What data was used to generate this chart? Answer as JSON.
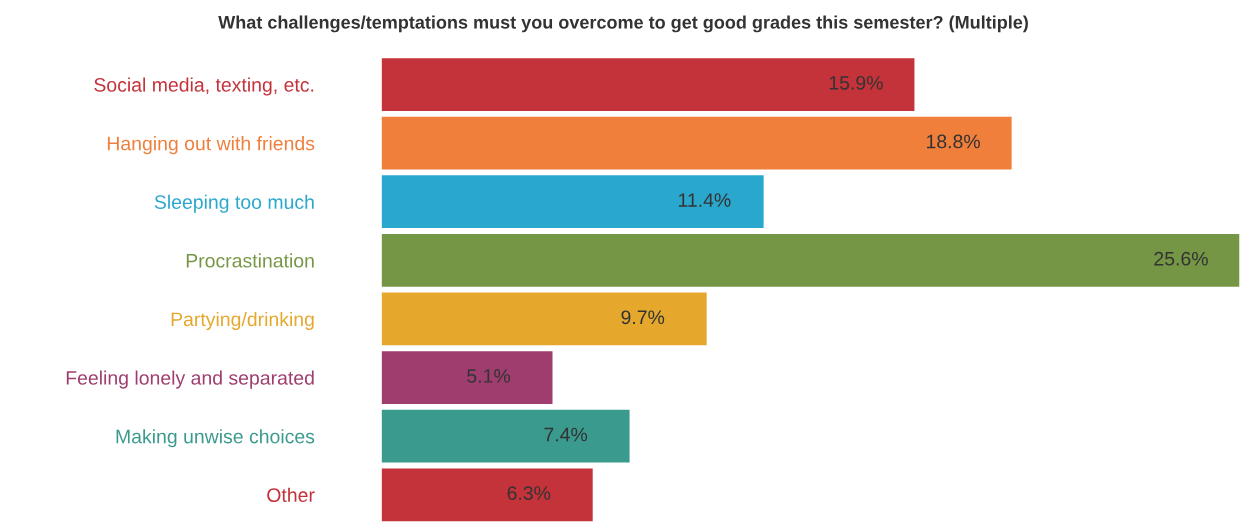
{
  "chart_data": {
    "type": "bar",
    "orientation": "horizontal",
    "title": "What challenges/temptations must you overcome to get good grades this semester? (Multiple)",
    "categories": [
      "Social media, texting, etc.",
      "Hanging out with friends",
      "Sleeping too much",
      "Procrastination",
      "Partying/drinking",
      "Feeling lonely and separated",
      "Making unwise choices",
      "Other"
    ],
    "values": [
      15.9,
      18.8,
      11.4,
      25.6,
      9.7,
      5.1,
      7.4,
      6.3
    ],
    "colors": [
      "#c4323a",
      "#f07f3c",
      "#2aa7cc",
      "#759645",
      "#e5a82d",
      "#9e3d6e",
      "#3a9a8e",
      "#c4323a"
    ],
    "value_labels": [
      "15.9%",
      "18.8%",
      "11.4%",
      "25.6%",
      "9.7%",
      "5.1%",
      "7.4%",
      "6.3%"
    ]
  }
}
